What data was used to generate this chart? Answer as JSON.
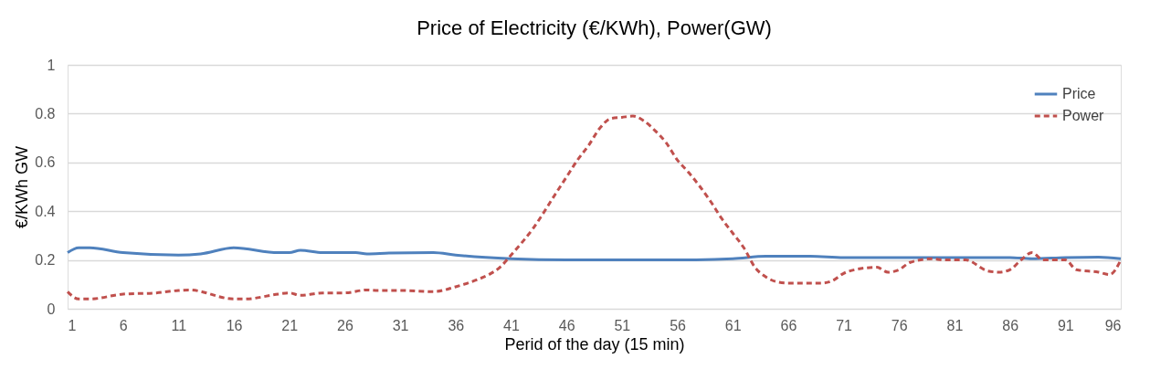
{
  "chart_data": {
    "type": "line",
    "title": "Price of Electricity (€/KWh), Power(GW)",
    "xlabel": "Perid of the day (15 min)",
    "ylabel": "€/KWh GW",
    "xlim": [
      1,
      96
    ],
    "xticks": [
      1,
      6,
      11,
      16,
      21,
      26,
      31,
      36,
      41,
      46,
      51,
      56,
      61,
      66,
      71,
      76,
      81,
      86,
      91,
      96
    ],
    "ylim": [
      0,
      1
    ],
    "yticks": [
      0,
      0.2,
      0.4,
      0.6,
      0.8,
      1
    ],
    "grid": "y",
    "legend": "top right",
    "series": [
      {
        "name": "Price",
        "color": "#4f81bd",
        "line_style": "solid",
        "x": [
          1,
          2,
          3,
          6,
          11,
          13,
          16,
          20,
          21,
          22,
          24,
          27,
          28,
          30,
          34,
          36,
          41,
          46,
          51,
          56,
          61,
          64,
          68,
          71,
          76,
          81,
          86,
          88,
          91,
          94,
          96
        ],
        "values": [
          0.23,
          0.25,
          0.25,
          0.23,
          0.22,
          0.225,
          0.25,
          0.23,
          0.23,
          0.24,
          0.23,
          0.23,
          0.225,
          0.228,
          0.23,
          0.22,
          0.205,
          0.2,
          0.2,
          0.2,
          0.205,
          0.215,
          0.215,
          0.21,
          0.21,
          0.21,
          0.21,
          0.205,
          0.21,
          0.212,
          0.205
        ]
      },
      {
        "name": "Power",
        "color": "#c0504d",
        "line_style": "dashed",
        "x": [
          1,
          2,
          3,
          6,
          9,
          11,
          12,
          16,
          17,
          20,
          21,
          22,
          24,
          26,
          28,
          29,
          31,
          34,
          36,
          38,
          39,
          40,
          41,
          43,
          45,
          46,
          47,
          48,
          49,
          50,
          51,
          52,
          53,
          54,
          55,
          56,
          57,
          59,
          60,
          61,
          62,
          63,
          64,
          65,
          66,
          69,
          70,
          71,
          72,
          74,
          75,
          76,
          77,
          79,
          80,
          82,
          84,
          85,
          86,
          87,
          88,
          89,
          90,
          91,
          92,
          94,
          95,
          96
        ],
        "values": [
          0.07,
          0.04,
          0.04,
          0.06,
          0.065,
          0.075,
          0.077,
          0.04,
          0.04,
          0.06,
          0.065,
          0.055,
          0.065,
          0.065,
          0.077,
          0.075,
          0.075,
          0.07,
          0.09,
          0.12,
          0.14,
          0.17,
          0.22,
          0.33,
          0.47,
          0.54,
          0.61,
          0.67,
          0.74,
          0.78,
          0.785,
          0.79,
          0.77,
          0.73,
          0.68,
          0.61,
          0.56,
          0.44,
          0.37,
          0.31,
          0.25,
          0.17,
          0.13,
          0.11,
          0.105,
          0.105,
          0.115,
          0.145,
          0.16,
          0.17,
          0.15,
          0.16,
          0.19,
          0.205,
          0.2,
          0.2,
          0.155,
          0.15,
          0.16,
          0.2,
          0.23,
          0.2,
          0.2,
          0.2,
          0.16,
          0.15,
          0.14,
          0.2
        ]
      }
    ]
  }
}
